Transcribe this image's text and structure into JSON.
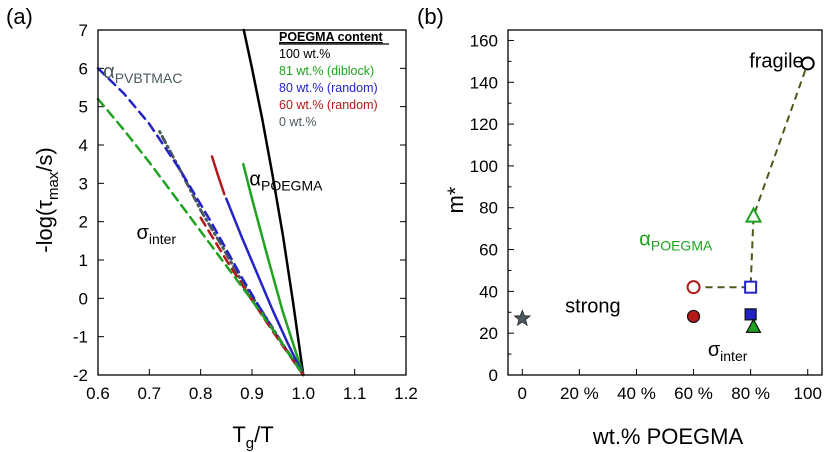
{
  "colors": {
    "c100": "#000000",
    "c81": "#1fa31f",
    "c80": "#2323c8",
    "c60": "#b21a1a",
    "c0": "#4a5a60",
    "sigma": "#5a5a5a",
    "connector": "#4a5a1a"
  },
  "chart_data": [
    {
      "type": "line",
      "panel_label": "(a)",
      "xlabel": "Tg/T",
      "xlabel_parts": {
        "main": "T",
        "sub": "g",
        "rest": "/T"
      },
      "ylabel": "-log(τmax/s)",
      "ylabel_parts": {
        "pre": "-log(τ",
        "sub": "max",
        "post": "/s)"
      },
      "xlim": [
        0.6,
        1.2
      ],
      "ylim": [
        -2,
        7
      ],
      "x_ticks": [
        0.6,
        0.7,
        0.8,
        0.9,
        1.0,
        1.1,
        1.2
      ],
      "x_tick_labels": [
        "0.6",
        "0.7",
        "0.8",
        "0.9",
        "1.0",
        "1.1",
        "1.2"
      ],
      "y_ticks": [
        -2,
        -1,
        0,
        1,
        2,
        3,
        4,
        5,
        6,
        7
      ],
      "y_tick_labels": [
        "-2",
        "-1",
        "0",
        "1",
        "2",
        "3",
        "4",
        "5",
        "6",
        "7"
      ],
      "legend": {
        "title": "POEGMA content",
        "entries": [
          {
            "label": "100 wt.%",
            "color_key": "c100"
          },
          {
            "label": "81 wt.% (diblock)",
            "color_key": "c81"
          },
          {
            "label": "80 wt.% (random)",
            "color_key": "c80"
          },
          {
            "label": "60 wt.% (random)",
            "color_key": "c60"
          },
          {
            "label": "0 wt.%",
            "color_key": "c0"
          }
        ]
      },
      "annotations": [
        {
          "id": "alpha-pvbtmac",
          "main": "α",
          "sub": "PVBTMAC",
          "x": 0.61,
          "y": 5.75,
          "color_key": "c0"
        },
        {
          "id": "alpha-poegma",
          "main": "α",
          "sub": "POEGMA",
          "x": 0.895,
          "y": 2.95,
          "color_key": "c100"
        },
        {
          "id": "sigma-inter",
          "main": "σ",
          "sub": "inter",
          "x": 0.675,
          "y": 1.55,
          "color_key": "c100"
        }
      ],
      "series": [
        {
          "name": "100 wt.% alpha",
          "color_key": "c100",
          "style": "solid",
          "x": [
            0.884,
            0.9,
            0.92,
            0.94,
            0.96,
            0.98,
            1.0
          ],
          "y": [
            7.0,
            6.0,
            4.67,
            3.22,
            1.66,
            -0.11,
            -2.0
          ]
        },
        {
          "name": "81 wt.% alpha",
          "color_key": "c81",
          "style": "solid",
          "x": [
            0.883,
            0.9,
            0.93,
            0.96,
            1.0
          ],
          "y": [
            3.5,
            2.6,
            1.1,
            -0.35,
            -2.0
          ]
        },
        {
          "name": "80 wt.% alpha",
          "color_key": "c80",
          "style": "solid",
          "x": [
            0.85,
            0.88,
            0.91,
            0.94,
            0.97,
            1.0
          ],
          "y": [
            2.6,
            1.6,
            0.65,
            -0.3,
            -1.18,
            -2.0
          ]
        },
        {
          "name": "60 wt.% alpha",
          "color_key": "c60",
          "style": "solid",
          "x": [
            0.822,
            0.834,
            0.846
          ],
          "y": [
            3.7,
            3.2,
            2.72
          ]
        },
        {
          "name": "0 wt.% sigma",
          "color_key": "c0",
          "style": "dashdot",
          "x": [
            0.72,
            0.76,
            0.8,
            0.84,
            0.88,
            0.92,
            0.96,
            1.0
          ],
          "y": [
            4.35,
            3.35,
            2.3,
            1.4,
            0.45,
            -0.35,
            -1.2,
            -2.0
          ]
        },
        {
          "name": "80 wt.% sigma",
          "color_key": "c80",
          "style": "dashed",
          "x": [
            0.6,
            0.65,
            0.7,
            0.76,
            0.82,
            0.88,
            0.94,
            1.0
          ],
          "y": [
            6.0,
            5.35,
            4.55,
            3.35,
            2.0,
            0.55,
            -0.8,
            -2.0
          ]
        },
        {
          "name": "60 wt.% sigma",
          "color_key": "c60",
          "style": "dashed",
          "x": [
            0.8,
            0.85,
            0.9,
            0.95,
            1.0
          ],
          "y": [
            2.1,
            1.0,
            -0.05,
            -1.05,
            -2.0
          ]
        },
        {
          "name": "81 wt.% sigma",
          "color_key": "c81",
          "style": "dashed",
          "x": [
            0.6,
            0.65,
            0.7,
            0.75,
            0.8,
            0.85,
            0.9,
            0.95,
            1.0
          ],
          "y": [
            5.2,
            4.4,
            3.55,
            2.65,
            1.75,
            0.85,
            -0.05,
            -1.0,
            -2.0
          ]
        }
      ]
    },
    {
      "type": "scatter",
      "panel_label": "(b)",
      "xlabel": "wt.% POEGMA",
      "ylabel": "m*",
      "xlim": [
        -5,
        105
      ],
      "ylim": [
        0,
        165
      ],
      "x_ticks": [
        0,
        20,
        40,
        60,
        80,
        100
      ],
      "x_tick_labels": [
        "0",
        "20 %",
        "40 %",
        "60 %",
        "80 %",
        "100"
      ],
      "y_ticks": [
        0,
        20,
        40,
        60,
        80,
        100,
        120,
        140,
        160
      ],
      "y_tick_labels": [
        "0",
        "20",
        "40",
        "60",
        "80",
        "100",
        "120",
        "140",
        "160"
      ],
      "annotations": [
        {
          "id": "fragile",
          "text": "fragile",
          "x": 79.5,
          "y": 147,
          "color_key": "c100"
        },
        {
          "id": "strong",
          "text": "strong",
          "x": 15,
          "y": 30,
          "color_key": "c100"
        },
        {
          "id": "alpha-poegma-b",
          "main": "α",
          "sub": "POEGMA",
          "x": 41,
          "y": 62,
          "color_key": "c81"
        },
        {
          "id": "sigma-inter-b",
          "main": "σ",
          "sub": "inter",
          "x": 65,
          "y": 9,
          "color_key": "c100"
        }
      ],
      "connector": {
        "style": "dashed",
        "color_key": "connector",
        "x": [
          60,
          80,
          81,
          100
        ],
        "y": [
          42,
          42,
          76,
          149
        ]
      },
      "points": [
        {
          "name": "0 wt.% sigma",
          "x": 0,
          "y": 27,
          "marker": "star",
          "filled": true,
          "color_key": "c0"
        },
        {
          "name": "60 wt.% alpha",
          "x": 60,
          "y": 42,
          "marker": "circle",
          "filled": false,
          "color_key": "c60"
        },
        {
          "name": "60 wt.% sigma",
          "x": 60,
          "y": 28,
          "marker": "circle",
          "filled": true,
          "color_key": "c60"
        },
        {
          "name": "80 wt.% alpha",
          "x": 80,
          "y": 42,
          "marker": "square",
          "filled": false,
          "color_key": "c80"
        },
        {
          "name": "80 wt.% sigma",
          "x": 80,
          "y": 29,
          "marker": "square",
          "filled": true,
          "color_key": "c80"
        },
        {
          "name": "81 wt.% alpha",
          "x": 81,
          "y": 76,
          "marker": "triangle",
          "filled": false,
          "color_key": "c81"
        },
        {
          "name": "81 wt.% sigma",
          "x": 81,
          "y": 23,
          "marker": "triangle",
          "filled": true,
          "color_key": "c81"
        },
        {
          "name": "100 wt.% alpha",
          "x": 100,
          "y": 149,
          "marker": "circle",
          "filled": false,
          "color_key": "c100"
        }
      ]
    }
  ]
}
